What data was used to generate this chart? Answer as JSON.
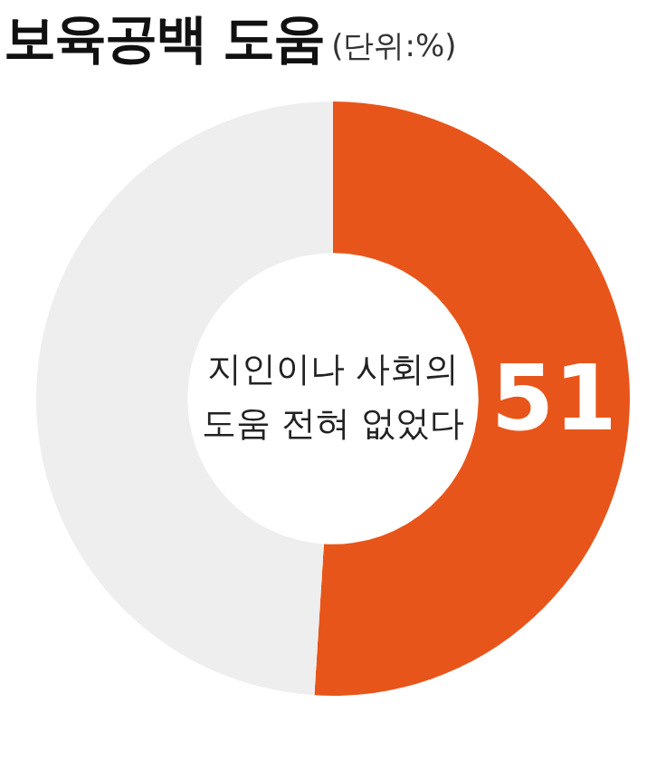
{
  "chart_data": {
    "type": "donut",
    "title": "보육공백 도움",
    "subtitle": "(단위:%)",
    "categories": [
      "지인이나 사회의 도움 전혀 없었다",
      null
    ],
    "values": [
      51,
      49
    ],
    "colors": [
      "#e8551a",
      "#eeeeee"
    ],
    "value_labels": [
      "51",
      null
    ],
    "legend": false
  }
}
